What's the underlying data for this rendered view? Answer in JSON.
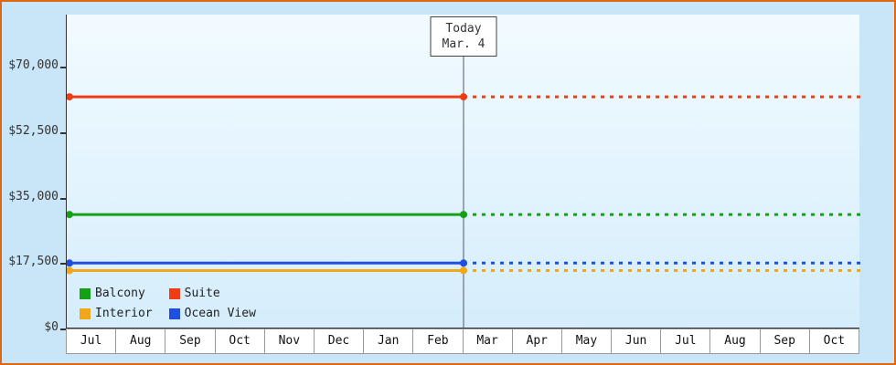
{
  "chart_data": {
    "type": "line",
    "title": "",
    "x_categories": [
      "Jul",
      "Aug",
      "Sep",
      "Oct",
      "Nov",
      "Dec",
      "Jan",
      "Feb",
      "Mar",
      "Apr",
      "May",
      "Jun",
      "Jul",
      "Aug",
      "Sep",
      "Oct"
    ],
    "y_axis": {
      "min_value": 0,
      "max_value": 84000,
      "ticks": [
        {
          "label": "$0",
          "value": 0
        },
        {
          "label": "$17,500",
          "value": 17500
        },
        {
          "label": "$35,000",
          "value": 35000
        },
        {
          "label": "$52,500",
          "value": 52500
        },
        {
          "label": "$70,000",
          "value": 70000
        }
      ]
    },
    "today_marker": {
      "line1": "Today",
      "line2": "Mar. 4",
      "x_fraction": 0.5
    },
    "series": [
      {
        "name": "Balcony",
        "color": "#16a016",
        "value": 30500
      },
      {
        "name": "Suite",
        "color": "#ee3d16",
        "value": 62000
      },
      {
        "name": "Interior",
        "color": "#f2a71b",
        "value": 15500
      },
      {
        "name": "Ocean View",
        "color": "#1e4fe0",
        "value": 17500
      }
    ],
    "line_style": {
      "solid_until_fraction": 0.5,
      "dashed_after_today": true,
      "line_width": 3
    },
    "legend_position": "bottom-left"
  },
  "colors": {
    "frame_border": "#e0670f",
    "background": "#c9e6f8",
    "plot_gradient_top": "#f2fbff",
    "plot_gradient_bottom": "#d5edfc",
    "axis": "#333333",
    "today_line": "#555566"
  }
}
